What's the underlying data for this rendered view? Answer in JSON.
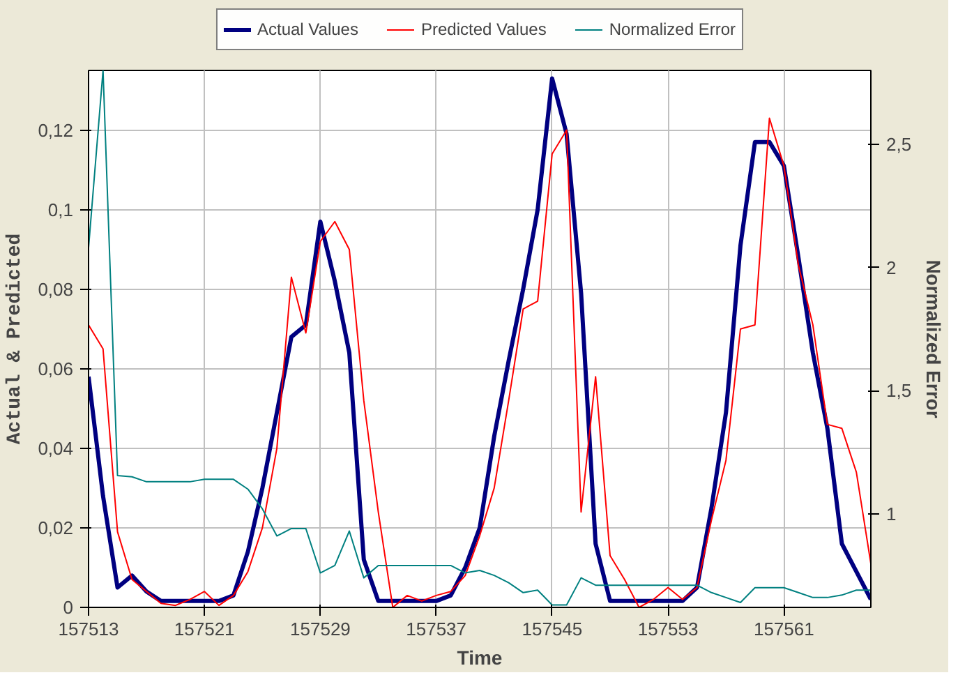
{
  "chart_data": {
    "type": "line",
    "xlabel": "Time",
    "ylabel": "Actual & Predicted",
    "y2label": "Normalized Error",
    "x": [
      157513,
      157514,
      157515,
      157516,
      157517,
      157518,
      157519,
      157520,
      157521,
      157522,
      157523,
      157524,
      157525,
      157526,
      157527,
      157528,
      157529,
      157530,
      157531,
      157532,
      157533,
      157534,
      157535,
      157536,
      157537,
      157538,
      157539,
      157540,
      157541,
      157542,
      157543,
      157544,
      157545,
      157546,
      157547,
      157548,
      157549,
      157550,
      157551,
      157552,
      157553,
      157554,
      157555,
      157556,
      157557,
      157558,
      157559,
      157560,
      157561,
      157562,
      157563,
      157564,
      157565,
      157566,
      157567
    ],
    "series": [
      {
        "name": "Actual Values",
        "color": "#000080",
        "values": [
          0.058,
          0.028,
          0.005,
          0.008,
          0.004,
          0.0016,
          0.0016,
          0.0016,
          0.0016,
          0.0016,
          0.003,
          0.014,
          0.03,
          0.049,
          0.068,
          0.071,
          0.097,
          0.082,
          0.064,
          0.012,
          0.0016,
          0.0016,
          0.0016,
          0.0016,
          0.0016,
          0.003,
          0.01,
          0.02,
          0.043,
          0.062,
          0.08,
          0.1,
          0.133,
          0.119,
          0.079,
          0.016,
          0.0016,
          0.0016,
          0.0016,
          0.0016,
          0.0016,
          0.0016,
          0.005,
          0.025,
          0.049,
          0.091,
          0.117,
          0.117,
          0.111,
          0.088,
          0.064,
          0.045,
          0.016,
          0.009,
          0.002
        ]
      },
      {
        "name": "Predicted Values",
        "color": "#ff0000",
        "values": [
          0.071,
          0.065,
          0.019,
          0.007,
          0.004,
          0.001,
          0.0005,
          0.002,
          0.004,
          0.0005,
          0.003,
          0.009,
          0.02,
          0.04,
          0.083,
          0.069,
          0.092,
          0.097,
          0.09,
          0.052,
          0.024,
          0,
          0.003,
          0.0016,
          0.003,
          0.004,
          0.008,
          0.018,
          0.03,
          0.052,
          0.075,
          0.077,
          0.114,
          0.12,
          0.024,
          0.058,
          0.013,
          0.007,
          0,
          0.002,
          0.005,
          0.002,
          0.005,
          0.022,
          0.037,
          0.07,
          0.071,
          0.123,
          0.111,
          0.086,
          0.071,
          0.046,
          0.045,
          0.034,
          0.011
        ]
      },
      {
        "name": "Normalized Error",
        "color": "#008080",
        "axis": "y2",
        "values": [
          2.08,
          2.8,
          1.155,
          1.15,
          1.13,
          1.13,
          1.13,
          1.13,
          1.14,
          1.14,
          1.14,
          1.1,
          1.02,
          0.91,
          0.94,
          0.94,
          0.76,
          0.79,
          0.93,
          0.74,
          0.79,
          0.79,
          0.79,
          0.79,
          0.79,
          0.79,
          0.76,
          0.77,
          0.75,
          0.72,
          0.68,
          0.69,
          0.63,
          0.63,
          0.74,
          0.71,
          0.71,
          0.71,
          0.71,
          0.71,
          0.71,
          0.71,
          0.71,
          0.68,
          0.66,
          0.64,
          0.7,
          0.7,
          0.7,
          0.68,
          0.66,
          0.66,
          0.67,
          0.69,
          0.69
        ]
      }
    ],
    "xlim": [
      157513,
      157567
    ],
    "xticks": [
      157513,
      157521,
      157529,
      157537,
      157545,
      157553,
      157561
    ],
    "ylim": [
      0,
      0.135
    ],
    "yticks": [
      0,
      {
        "value": 0.02,
        "label": "0,02"
      },
      {
        "value": 0.04,
        "label": "0,04"
      },
      {
        "value": 0.06,
        "label": "0,06"
      },
      {
        "value": 0.08,
        "label": "0,08"
      },
      {
        "value": 0.1,
        "label": "0,1"
      },
      {
        "value": 0.12,
        "label": "0,12"
      }
    ],
    "y2lim": [
      0.62,
      2.8
    ],
    "y2ticks": [
      1,
      {
        "value": 1.5,
        "label": "1,5"
      },
      2,
      {
        "value": 2.5,
        "label": "2,5"
      }
    ],
    "grid": true,
    "legend": "top",
    "marker": "none",
    "line_style": "solid"
  }
}
